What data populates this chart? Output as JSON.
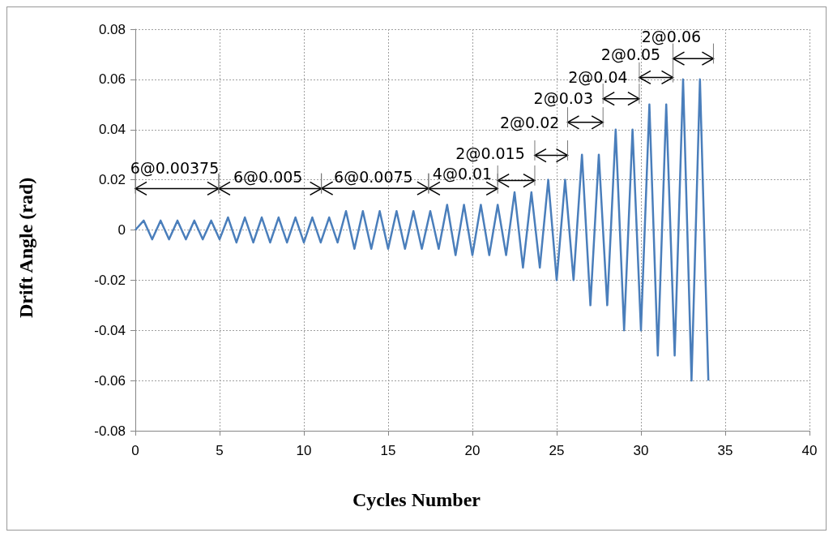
{
  "chart_data": {
    "type": "line",
    "xlabel": "Cycles Number",
    "ylabel": "Drift Angle (rad)",
    "x": [
      0,
      0.5,
      1,
      1.5,
      2,
      2.5,
      3,
      3.5,
      4,
      4.5,
      5,
      5.5,
      6,
      6.5,
      7,
      7.5,
      8,
      8.5,
      9,
      9.5,
      10,
      10.5,
      11,
      11.5,
      12,
      12.5,
      13,
      13.5,
      14,
      14.5,
      15,
      15.5,
      16,
      16.5,
      17,
      17.5,
      18,
      18.5,
      19,
      19.5,
      20,
      20.5,
      21,
      21.5,
      22,
      22.5,
      23,
      23.5,
      24,
      24.5,
      25,
      25.5,
      26,
      26.5,
      27,
      27.5,
      28,
      28.5,
      29,
      29.5,
      30,
      30.5,
      31,
      31.5,
      32,
      32.5,
      33,
      33.5,
      34
    ],
    "series": [
      {
        "color": "#4a7ebb",
        "values": [
          0,
          0.00375,
          -0.00375,
          0.00375,
          -0.00375,
          0.00375,
          -0.00375,
          0.00375,
          -0.00375,
          0.00375,
          -0.00375,
          0.005,
          -0.005,
          0.005,
          -0.005,
          0.005,
          -0.005,
          0.005,
          -0.005,
          0.005,
          -0.005,
          0.005,
          -0.005,
          0.005,
          -0.005,
          0.0075,
          -0.0075,
          0.0075,
          -0.0075,
          0.0075,
          -0.0075,
          0.0075,
          -0.0075,
          0.0075,
          -0.0075,
          0.0075,
          -0.0075,
          0.01,
          -0.01,
          0.01,
          -0.01,
          0.01,
          -0.01,
          0.01,
          -0.01,
          0.015,
          -0.015,
          0.015,
          -0.015,
          0.02,
          -0.02,
          0.02,
          -0.02,
          0.03,
          -0.03,
          0.03,
          -0.03,
          0.04,
          -0.04,
          0.04,
          -0.04,
          0.05,
          -0.05,
          0.05,
          -0.05,
          0.06,
          -0.06,
          0.06,
          -0.06
        ]
      }
    ],
    "xlim": [
      0,
      40
    ],
    "xticks": [
      0,
      5,
      10,
      15,
      20,
      25,
      30,
      35,
      40
    ],
    "ylim": [
      -0.08,
      0.08
    ],
    "yticks": [
      -0.08,
      -0.06,
      -0.04,
      -0.02,
      0,
      0.02,
      0.04,
      0.06,
      0.08
    ],
    "grid": true,
    "marker": "none",
    "line_style": "solid",
    "annotations": [
      "6@0.00375",
      "6@0.005",
      "6@0.0075",
      "4@0.01",
      "2@0.015",
      "2@0.02",
      "2@0.03",
      "2@0.04",
      "2@0.05",
      "2@0.06"
    ]
  }
}
